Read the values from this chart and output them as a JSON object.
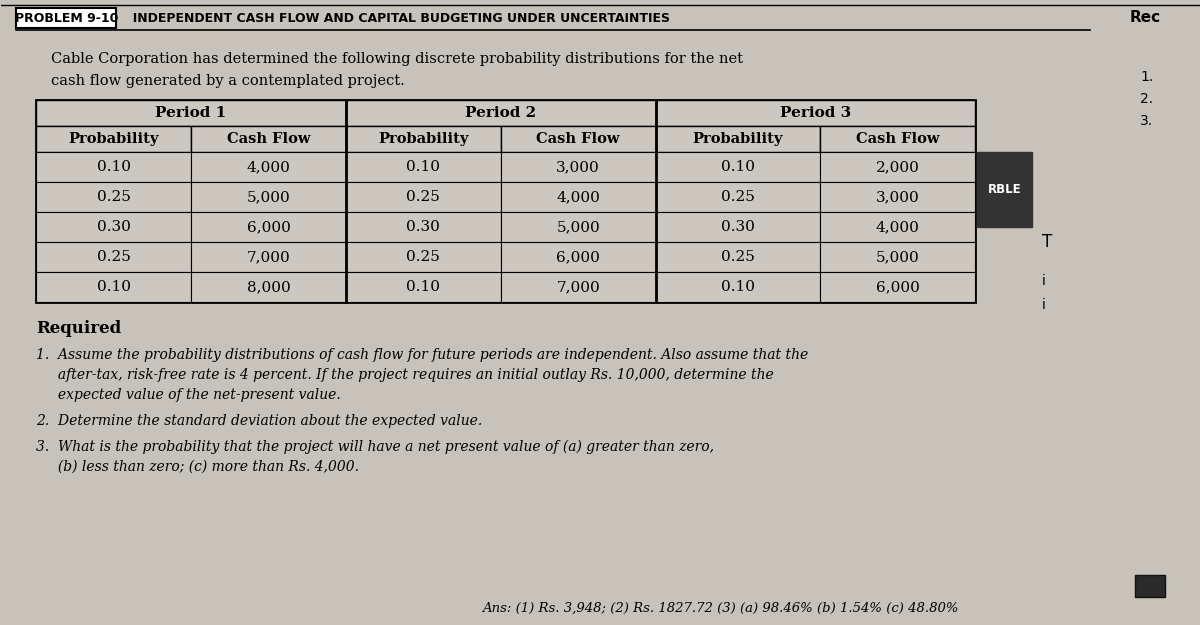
{
  "title_prefix": "PROBLEM 9-10",
  "title_main": "  INDEPENDENT CASH FLOW AND CAPITAL BUDGETING UNDER UNCERTAINTIES",
  "intro_line1": "Cable Corporation has determined the following discrete probability distributions for the net",
  "intro_line2": "cash flow generated by a contemplated project.",
  "period_headers": [
    "Period 1",
    "Period 2",
    "Period 3"
  ],
  "col_headers": [
    "Probability",
    "Cash Flow",
    "Probability",
    "Cash Flow",
    "Probability",
    "Cash Flow"
  ],
  "table_data": [
    [
      "0.10",
      "4,000",
      "0.10",
      "3,000",
      "0.10",
      "2,000"
    ],
    [
      "0.25",
      "5,000",
      "0.25",
      "4,000",
      "0.25",
      "3,000"
    ],
    [
      "0.30",
      "6,000",
      "0.30",
      "5,000",
      "0.30",
      "4,000"
    ],
    [
      "0.25",
      "7,000",
      "0.25",
      "6,000",
      "0.25",
      "5,000"
    ],
    [
      "0.10",
      "8,000",
      "0.10",
      "7,000",
      "0.10",
      "6,000"
    ]
  ],
  "required_label": "Required",
  "req_item1_num": "1.",
  "req_item1": "  Assume the probability distributions of cash flow for future periods are independent. Also assume that the",
  "req_item1b": "     after-tax, risk-free rate is 4 percent. If the project requires an initial outlay Rs. 10,000, determine the",
  "req_item1c": "     expected value of the net-present value.",
  "req_item2_num": "2.",
  "req_item2": "  Determine the standard deviation about the expected value.",
  "req_item3_num": "3.",
  "req_item3": "  What is the probability that the project will have a net present value of (a) greater than zero,",
  "req_item3b": "     (b) less than zero; (c) more than Rs. 4,000.",
  "ans_text": "Ans: (1) Rs. 3,948; (2) Rs. 1827.72 (3) (a) 98.46% (b) 1.54% (c) 48.80%",
  "right_rec": "Rec",
  "right_nums": [
    "1.",
    "2.",
    "3."
  ],
  "rble_text": "RBLE",
  "bg_color": "#c8c3ba",
  "page_bg": "#d6d1c8",
  "table_cell_bg": "#cdc8bf",
  "border_color": "#000000",
  "title_box_bg": "#ffffff",
  "title_line_color": "#000000",
  "rble_bg": "#2a2a2a",
  "rble_fg": "#e8e0d0"
}
